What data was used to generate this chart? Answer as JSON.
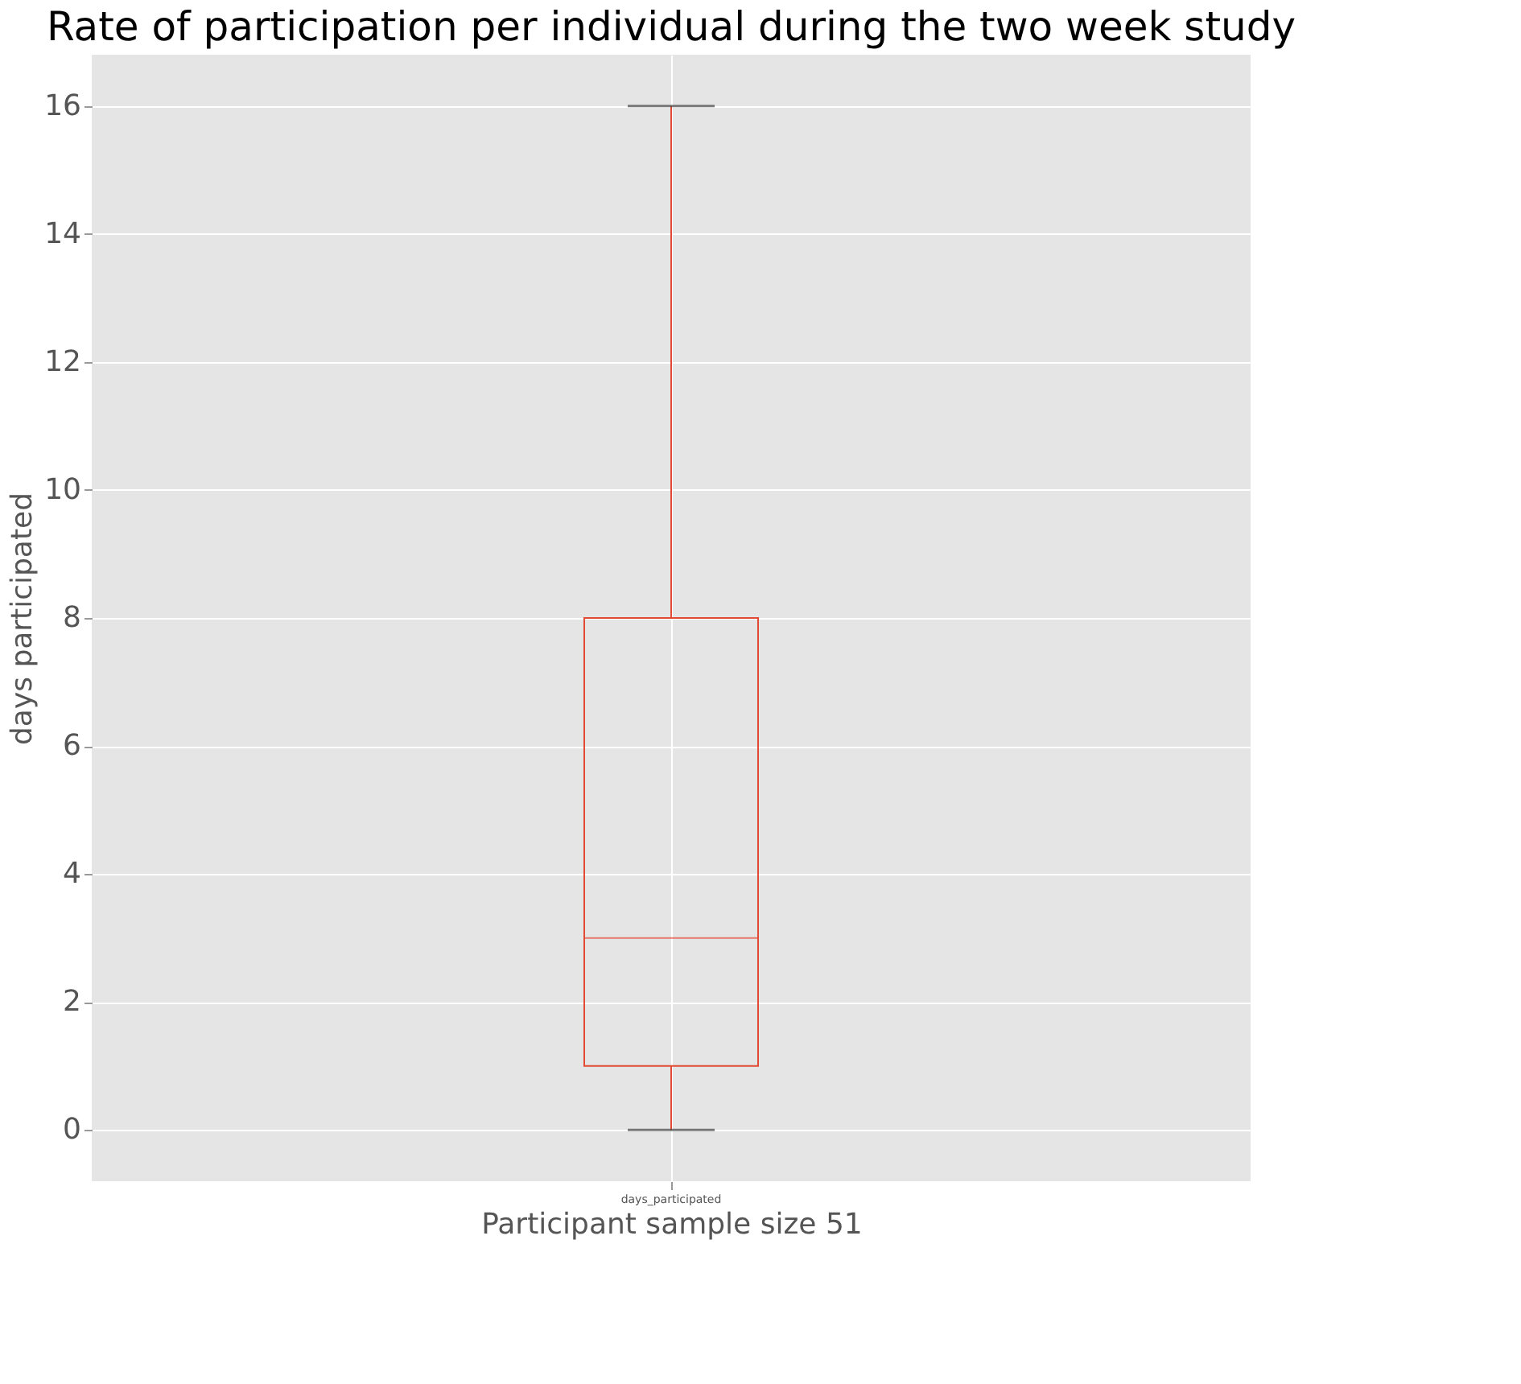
{
  "chart_data": {
    "type": "box",
    "title": "Rate of participation per individual during the two week study",
    "xlabel": "Participant sample size 51",
    "ylabel": "days participated",
    "categories": [
      "days_participated"
    ],
    "series": [
      {
        "color": "#e24a33",
        "boxes": [
          {
            "low": 0,
            "q1": 1,
            "median": 3,
            "q3": 8,
            "high": 16
          }
        ]
      }
    ],
    "ylim": [
      -0.8,
      16.8
    ],
    "yticks": [
      0,
      2,
      4,
      6,
      8,
      10,
      12,
      14,
      16
    ],
    "grid": true
  }
}
